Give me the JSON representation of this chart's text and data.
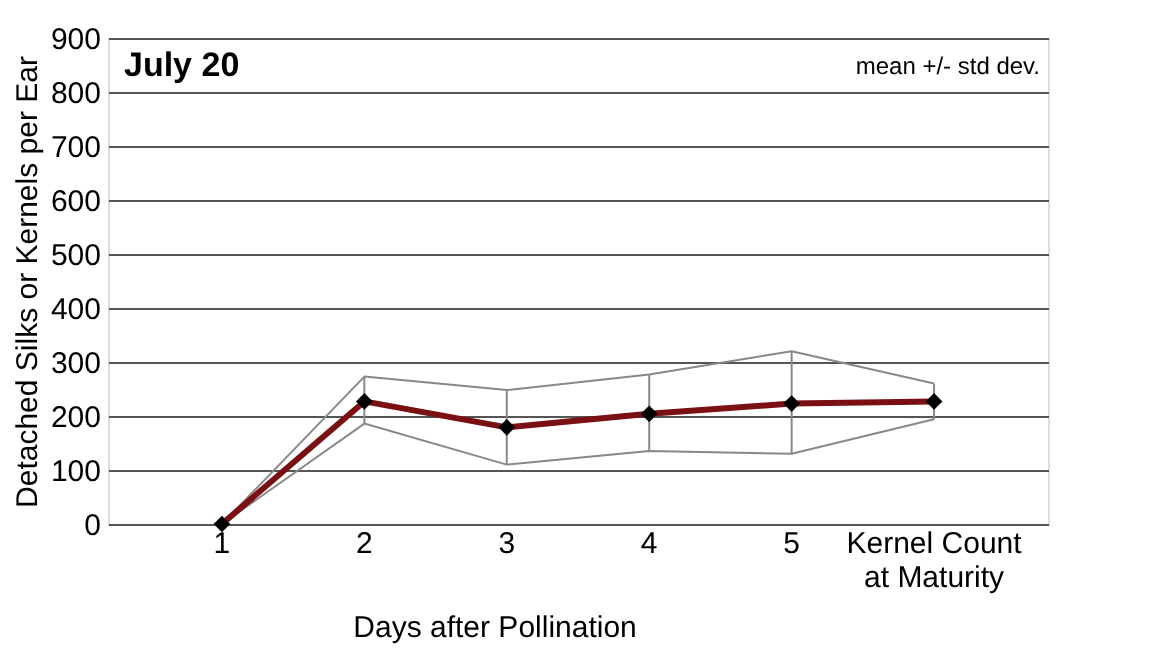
{
  "chart_data": {
    "type": "line",
    "title": "July 20",
    "xlabel": "Days after Pollination",
    "ylabel": "Detached Silks or Kernels per Ear",
    "annotations": [
      "mean +/- std dev."
    ],
    "categories": [
      "1",
      "2",
      "3",
      "4",
      "5",
      "Kernel Count at Maturity"
    ],
    "series": [
      {
        "color": "#888888",
        "marker": "none",
        "values": [
          0,
          273,
          248,
          277,
          320,
          260
        ]
      },
      {
        "color": "#888888",
        "marker": "none",
        "values": [
          0,
          186,
          110,
          135,
          130,
          194
        ]
      },
      {
        "color": "#7a0f14",
        "values": [
          0,
          227,
          179,
          204,
          223,
          227
        ],
        "errors": [
          null,
          [
            186,
            273
          ],
          [
            110,
            248
          ],
          [
            135,
            277
          ],
          [
            130,
            320
          ],
          [
            194,
            260
          ]
        ]
      }
    ],
    "ylim": [
      0,
      900
    ],
    "yticks": [
      0,
      100,
      200,
      300,
      400,
      500,
      600,
      700,
      800,
      900
    ],
    "grid": "y",
    "marker": "diamond",
    "line_style": "solid"
  }
}
